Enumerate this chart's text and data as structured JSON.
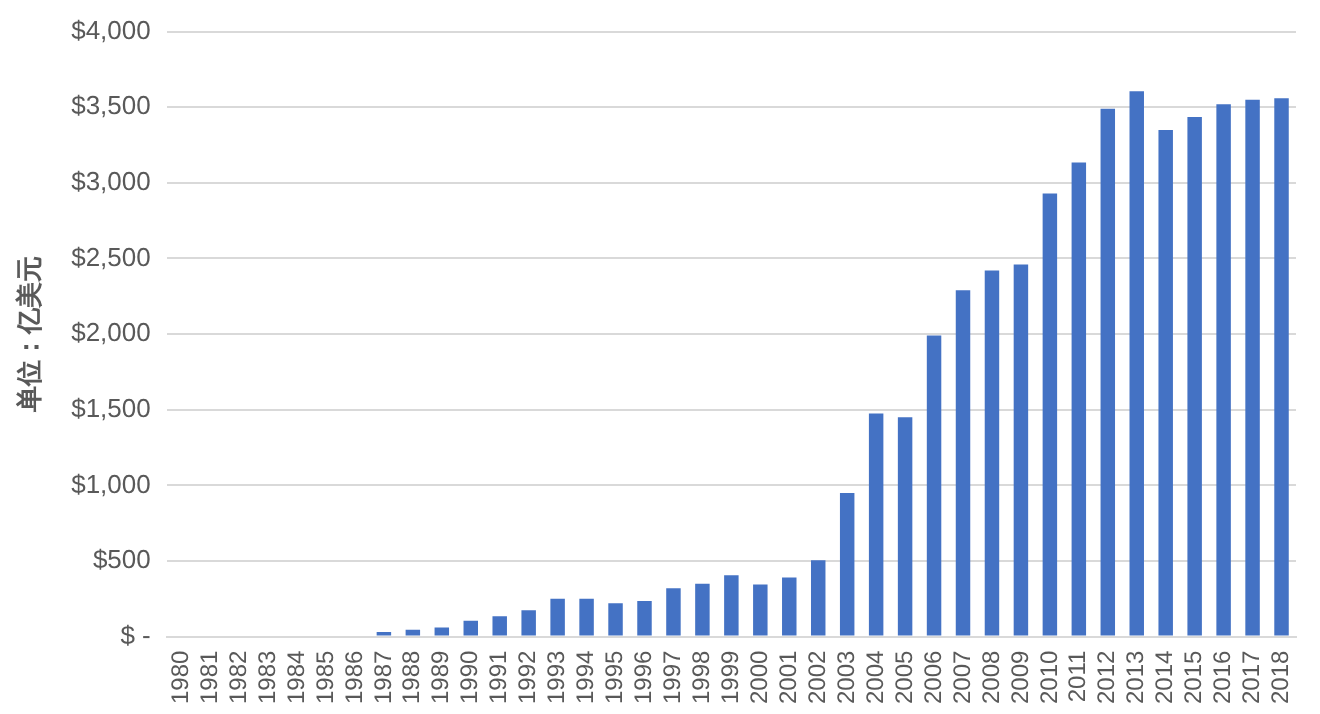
{
  "chart_data": {
    "type": "bar",
    "ylabel": "单位：亿美元",
    "categories": [
      "1980",
      "1981",
      "1982",
      "1983",
      "1984",
      "1985",
      "1986",
      "1987",
      "1988",
      "1989",
      "1990",
      "1991",
      "1992",
      "1993",
      "1994",
      "1995",
      "1996",
      "1997",
      "1998",
      "1999",
      "2000",
      "2001",
      "2002",
      "2003",
      "2004",
      "2005",
      "2006",
      "2007",
      "2008",
      "2009",
      "2010",
      "2011",
      "2012",
      "2013",
      "2014",
      "2015",
      "2016",
      "2017",
      "2018"
    ],
    "values": [
      0,
      0,
      0,
      0,
      0,
      0,
      0,
      30,
      45,
      60,
      105,
      135,
      175,
      250,
      250,
      220,
      235,
      320,
      350,
      405,
      345,
      390,
      505,
      950,
      1475,
      1450,
      1990,
      2290,
      2420,
      2460,
      2930,
      3135,
      3490,
      3605,
      3350,
      3435,
      3520,
      3550,
      3560
    ],
    "color": "#4472c4",
    "ylim": [
      0,
      4000
    ],
    "yticks": [
      {
        "value": 0,
        "label": "$ -"
      },
      {
        "value": 500,
        "label": "$500"
      },
      {
        "value": 1000,
        "label": "$1,000"
      },
      {
        "value": 1500,
        "label": "$1,500"
      },
      {
        "value": 2000,
        "label": "$2,000"
      },
      {
        "value": 2500,
        "label": "$2,500"
      },
      {
        "value": 3000,
        "label": "$3,000"
      },
      {
        "value": 3500,
        "label": "$3,500"
      },
      {
        "value": 4000,
        "label": "$4,000"
      }
    ],
    "grid": "y",
    "legend": false
  }
}
